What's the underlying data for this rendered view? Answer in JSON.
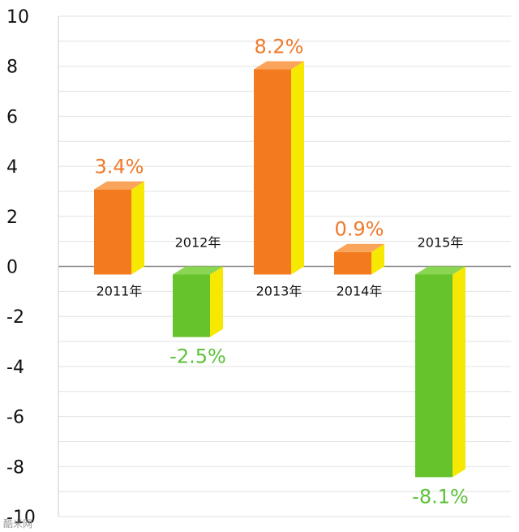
{
  "chart_data": {
    "type": "bar",
    "categories": [
      "2011年",
      "2012年",
      "2013年",
      "2014年",
      "2015年"
    ],
    "values": [
      3.4,
      -2.5,
      8.2,
      0.9,
      -8.1
    ],
    "data_labels": [
      "3.4%",
      "-2.5%",
      "8.2%",
      "0.9%",
      "-8.1%"
    ],
    "yticks": [
      "10",
      "8",
      "6",
      "4",
      "2",
      "0",
      "-2",
      "-4",
      "-6",
      "-8",
      "-10"
    ],
    "ylim": [
      -10,
      10
    ],
    "title": "",
    "xlabel": "",
    "ylabel": "",
    "grid": true,
    "colors": {
      "positive_front": "#f47a1f",
      "negative_front": "#67c32c",
      "side": "#f6e800",
      "positive_label": "#f07a2a",
      "negative_label": "#5cc23a",
      "grid": "#e2e2e2",
      "axis": "#888888"
    }
  },
  "watermark": "酷米网"
}
